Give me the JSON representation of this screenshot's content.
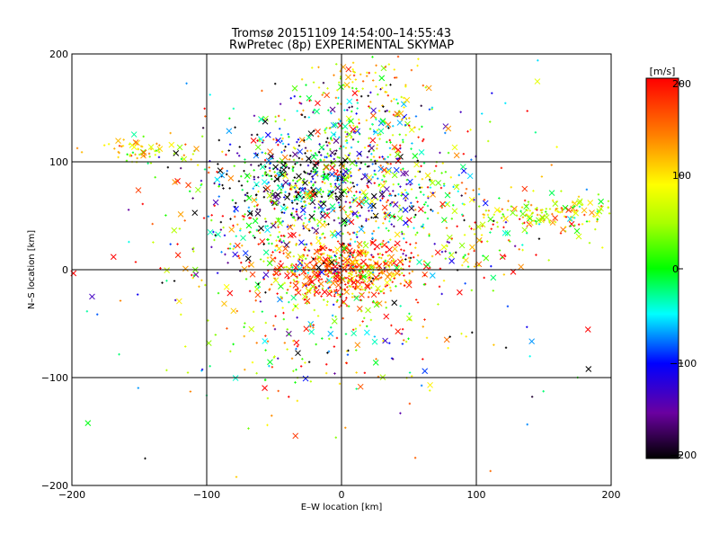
{
  "chart_data": {
    "type": "scatter",
    "title": "Tromsø 20151109 14:54:00–14:55:43",
    "subtitle": "RwPretec (8p) EXPERIMENTAL SKYMAP",
    "xlabel": "E–W location [km]",
    "ylabel": "N–S location [km]",
    "xlim": [
      -200,
      200
    ],
    "ylim": [
      -200,
      200
    ],
    "x_ticks": [
      "−200",
      "−100",
      "0",
      "100",
      "200"
    ],
    "y_ticks": [
      "−200",
      "−100",
      "0",
      "100",
      "200"
    ],
    "grid": true,
    "colorbar": {
      "label": "[m/s]",
      "range": [
        -200,
        200
      ],
      "ticks": [
        "200",
        "100",
        "0",
        "−100",
        "−200"
      ],
      "colormap": "black-purple-blue-cyan-green-yellow-orange-red"
    },
    "markers": [
      "+",
      "x"
    ],
    "clusters": [
      {
        "x": 0,
        "y": 0,
        "sx": 28,
        "sy": 14,
        "n": 600,
        "v": 150,
        "vs": 70
      },
      {
        "x": -30,
        "y": 85,
        "sx": 35,
        "sy": 22,
        "n": 520,
        "v": -90,
        "vs": 130
      },
      {
        "x": 40,
        "y": 75,
        "sx": 30,
        "sy": 25,
        "n": 220,
        "v": 30,
        "vs": 120
      },
      {
        "x": 15,
        "y": 140,
        "sx": 35,
        "sy": 18,
        "n": 180,
        "v": 30,
        "vs": 130
      },
      {
        "x": 15,
        "y": 178,
        "sx": 22,
        "sy": 10,
        "n": 60,
        "v": 90,
        "vs": 40
      },
      {
        "x": -145,
        "y": 110,
        "sx": 22,
        "sy": 6,
        "n": 70,
        "v": 90,
        "vs": 40
      },
      {
        "x": 160,
        "y": 52,
        "sx": 28,
        "sy": 8,
        "n": 150,
        "v": 70,
        "vs": 60
      },
      {
        "x": 110,
        "y": 30,
        "sx": 18,
        "sy": 15,
        "n": 50,
        "v": 60,
        "vs": 100
      },
      {
        "x": -20,
        "y": 35,
        "sx": 55,
        "sy": 30,
        "n": 350,
        "v": 20,
        "vs": 150
      },
      {
        "x": -15,
        "y": -55,
        "sx": 45,
        "sy": 35,
        "n": 180,
        "v": 70,
        "vs": 120
      },
      {
        "x": 0,
        "y": 0,
        "sx": 110,
        "sy": 95,
        "n": 220,
        "v": 40,
        "vs": 150
      }
    ]
  }
}
